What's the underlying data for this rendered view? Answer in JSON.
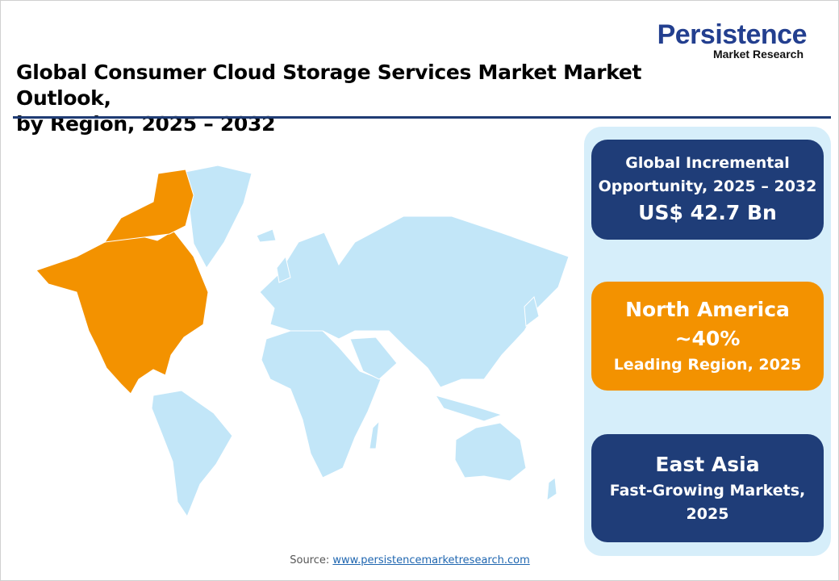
{
  "header": {
    "title_line1": "Global Consumer Cloud Storage Services Market Market Outlook,",
    "title_line2": "by Region, 2025 – 2032"
  },
  "logo": {
    "main": "Persistence",
    "sub": "Market Research"
  },
  "map": {
    "highlighted_region": "North America",
    "colors": {
      "highlight": "#f39200",
      "other": "#c2e6f8",
      "border": "#ffffff"
    }
  },
  "cards": [
    {
      "line1": "Global Incremental",
      "line2": "Opportunity, 2025 – 2032",
      "value": "US$ 42.7 Bn",
      "color": "#1f3d78"
    },
    {
      "title": "North America",
      "value": "~40%",
      "caption": "Leading Region, 2025",
      "color": "#f39200"
    },
    {
      "title": "East Asia",
      "caption_line1": "Fast-Growing Markets,",
      "caption_line2": "2025",
      "color": "#1f3d78"
    }
  ],
  "footer": {
    "source_label": "Source:",
    "source_link": "www.persistencemarketresearch.com"
  }
}
